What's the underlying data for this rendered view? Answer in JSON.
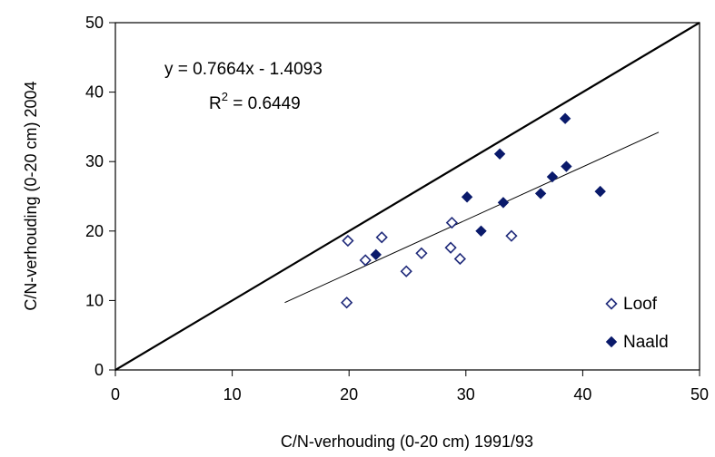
{
  "chart_data": {
    "type": "scatter",
    "xlabel": "C/N-verhouding (0-20 cm) 1991/93",
    "ylabel": "C/N-verhouding (0-20 cm) 2004",
    "xlim": [
      0,
      50
    ],
    "ylim": [
      0,
      50
    ],
    "xticks": [
      "0",
      "10",
      "20",
      "30",
      "40",
      "50"
    ],
    "yticks": [
      "0",
      "10",
      "20",
      "30",
      "40",
      "50"
    ],
    "grid": false,
    "legend_position": "bottom-right",
    "reference_line": {
      "from": [
        0,
        0
      ],
      "to": [
        50,
        50
      ]
    },
    "trendline": {
      "equation": "y = 0.7664x - 1.4093",
      "r2_prefix": "R",
      "r2_sup": "2",
      "r2_value": " = 0.6449",
      "slope": 0.7664,
      "intercept": -1.4093,
      "x_range": [
        14.5,
        46.5
      ]
    },
    "series": [
      {
        "name": "Loof",
        "marker": "diamond-open",
        "color": "#1f2a7a",
        "points": [
          [
            19.8,
            9.7
          ],
          [
            19.9,
            18.6
          ],
          [
            21.4,
            15.8
          ],
          [
            22.8,
            19.1
          ],
          [
            24.9,
            14.2
          ],
          [
            26.2,
            16.8
          ],
          [
            28.7,
            17.6
          ],
          [
            28.8,
            21.2
          ],
          [
            29.5,
            16.0
          ],
          [
            33.9,
            19.3
          ]
        ]
      },
      {
        "name": "Naald",
        "marker": "diamond-filled",
        "color": "#0a1a6b",
        "points": [
          [
            22.3,
            16.6
          ],
          [
            30.1,
            24.9
          ],
          [
            31.3,
            20.0
          ],
          [
            32.9,
            31.1
          ],
          [
            33.2,
            24.1
          ],
          [
            36.4,
            25.4
          ],
          [
            37.4,
            27.8
          ],
          [
            38.5,
            36.2
          ],
          [
            38.6,
            29.3
          ],
          [
            41.5,
            25.7
          ]
        ]
      }
    ]
  }
}
